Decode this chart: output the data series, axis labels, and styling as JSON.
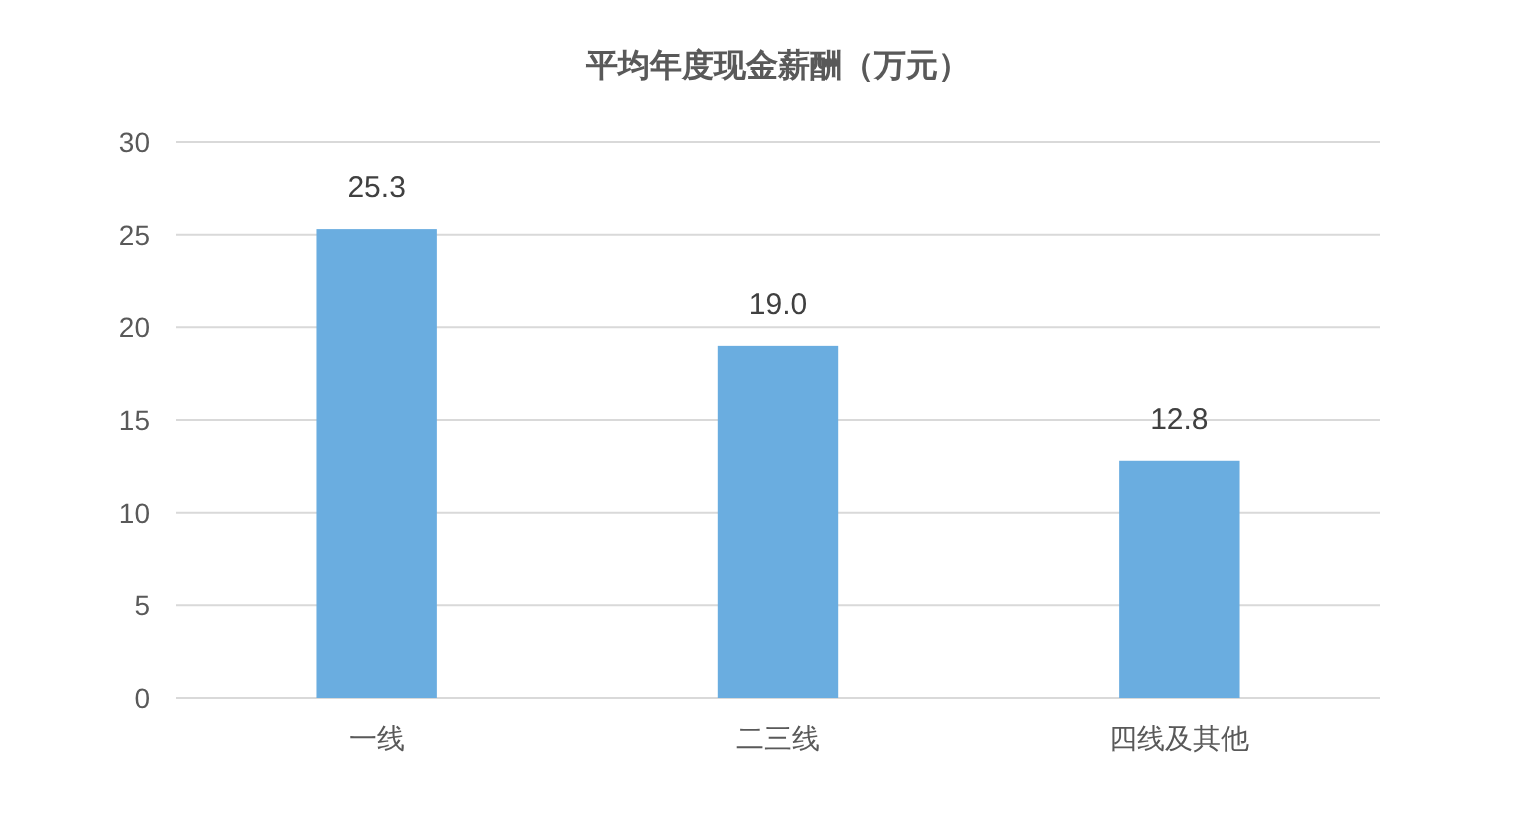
{
  "chart_data": {
    "type": "bar",
    "title": "平均年度现金薪酬（万元）",
    "categories": [
      "一线",
      "二三线",
      "四线及其他"
    ],
    "values": [
      25.3,
      19.0,
      12.8
    ],
    "value_labels": [
      "25.3",
      "19.0",
      "12.8"
    ],
    "color": "#6aade0",
    "ylim": [
      0,
      30
    ],
    "yticks": [
      0,
      5,
      10,
      15,
      20,
      25,
      30
    ],
    "grid": "y"
  }
}
